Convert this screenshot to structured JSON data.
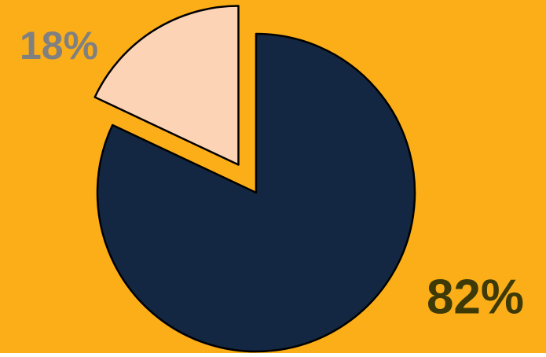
{
  "chart_data": {
    "type": "pie",
    "values": [
      82,
      18
    ],
    "value_labels": [
      "82%",
      "18%"
    ],
    "colors": [
      "#132742",
      "#fcd3b4"
    ],
    "label_colors": [
      "#3e3a08",
      "#808080"
    ],
    "background": "#fbae17"
  }
}
